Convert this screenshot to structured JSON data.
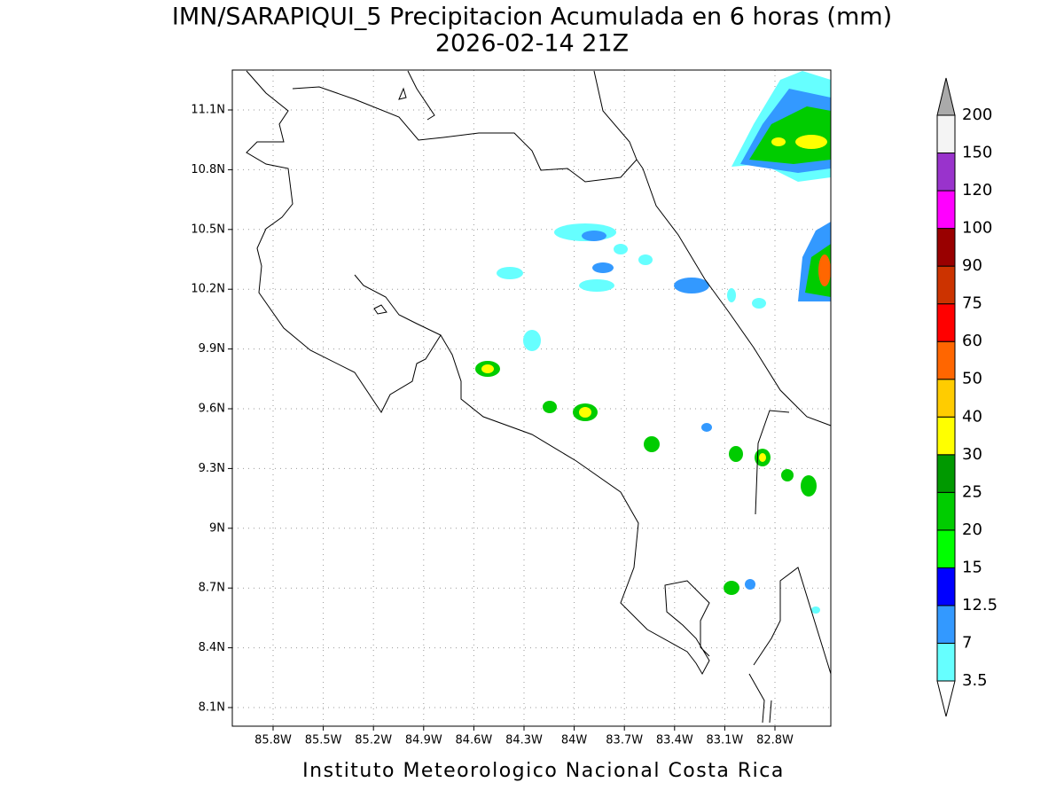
{
  "title": "IMN/SARAPIQUI_5 Precipitacion Acumulada en 6 horas (mm)",
  "subtitle": "2026-02-14 21Z",
  "footer": "Instituto Meteorologico Nacional Costa Rica",
  "map": {
    "xticks": [
      "85.8W",
      "85.5W",
      "85.2W",
      "84.9W",
      "84.6W",
      "84.3W",
      "84W",
      "83.7W",
      "83.4W",
      "83.1W",
      "82.8W"
    ],
    "yticks": [
      "11.1N",
      "10.8N",
      "10.5N",
      "10.2N",
      "9.9N",
      "9.6N",
      "9.3N",
      "9N",
      "8.7N",
      "8.4N",
      "8.1N"
    ],
    "colorbar": {
      "levels": [
        3.5,
        7,
        12.5,
        15,
        20,
        25,
        30,
        40,
        50,
        60,
        75,
        90,
        100,
        120,
        150,
        200
      ],
      "colors": [
        "#66ffff",
        "#3399ff",
        "#0000ff",
        "#00ff00",
        "#00cc00",
        "#009900",
        "#ffff00",
        "#ffcc00",
        "#ff6600",
        "#ff0000",
        "#cc3300",
        "#990000",
        "#ff00ff",
        "#9933cc",
        "#f4f4f4"
      ],
      "over_color": "#aaaaaa",
      "under_color": "#ffffff"
    }
  }
}
